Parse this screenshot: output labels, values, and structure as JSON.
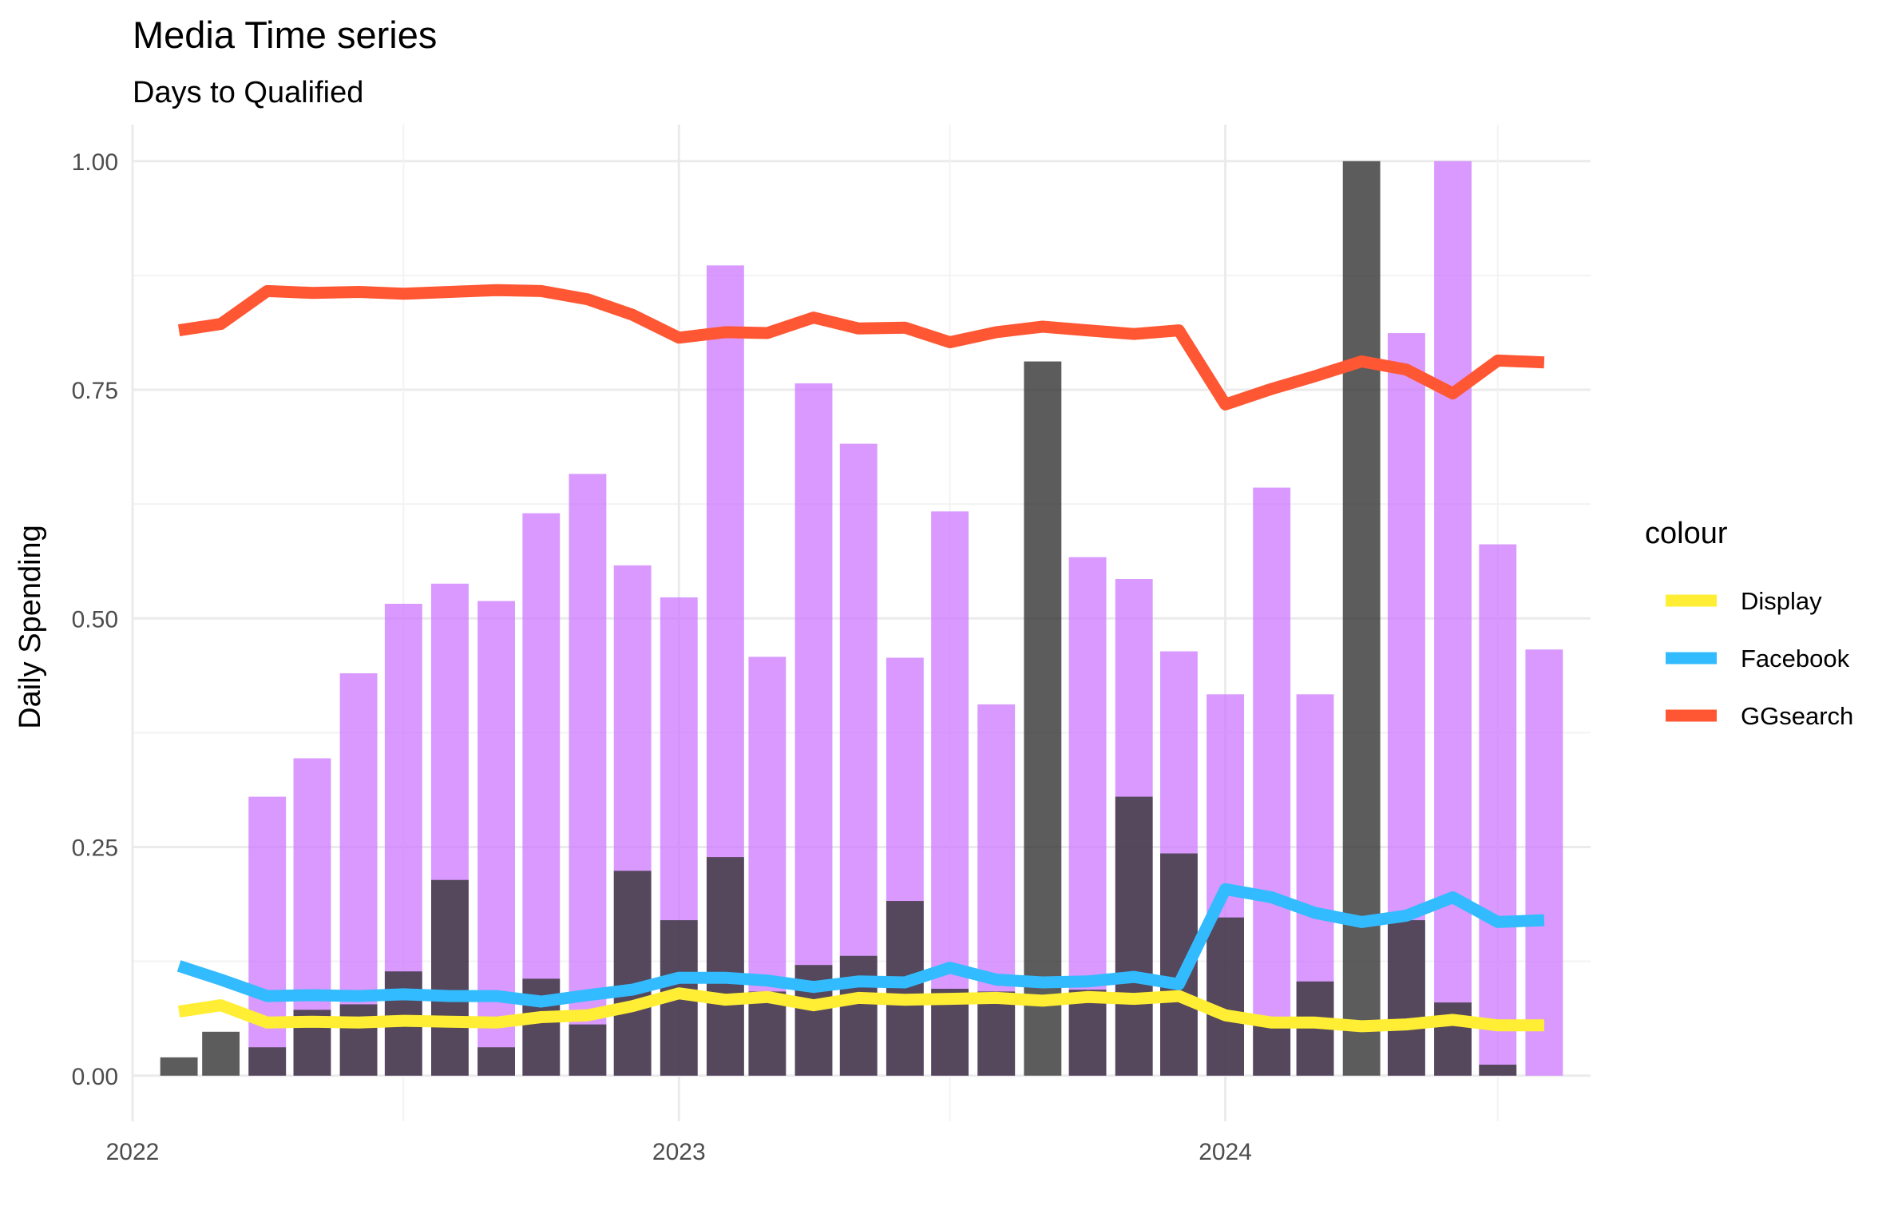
{
  "chart_data": {
    "type": "bar",
    "title": "Media Time series",
    "subtitle": "Days to Qualified",
    "xlabel": "",
    "ylabel": "Daily Spending",
    "ylim": [
      -0.05,
      1.04
    ],
    "yticks": [
      0.0,
      0.25,
      0.5,
      0.75,
      1.0
    ],
    "ytick_labels": [
      "0.00",
      "0.25",
      "0.50",
      "0.75",
      "1.00"
    ],
    "xticks": [
      "2022",
      "2023",
      "2024"
    ],
    "x_start": "2022-01-01",
    "x_end": "2024-09-01",
    "grid": true,
    "legend_title": "colour",
    "legend_position": "right",
    "dates": [
      "2022-02",
      "2022-03",
      "2022-04",
      "2022-05",
      "2022-06",
      "2022-07",
      "2022-08",
      "2022-09",
      "2022-10",
      "2022-11",
      "2022-12",
      "2023-01",
      "2023-02",
      "2023-03",
      "2023-04",
      "2023-05",
      "2023-06",
      "2023-07",
      "2023-08",
      "2023-09",
      "2023-10",
      "2023-11",
      "2023-12",
      "2024-01",
      "2024-02",
      "2024-03",
      "2024-04",
      "2024-05",
      "2024-06",
      "2024-07",
      "2024-08"
    ],
    "bar_series": [
      {
        "color": "#cc77ff",
        "opacity": 0.75,
        "values": [
          0.0,
          0.0,
          0.305,
          0.347,
          0.44,
          0.516,
          0.538,
          0.519,
          0.615,
          0.658,
          0.558,
          0.523,
          0.886,
          0.458,
          0.757,
          0.691,
          0.457,
          0.617,
          0.406,
          0.0,
          0.567,
          0.543,
          0.464,
          0.417,
          0.643,
          0.417,
          0.0,
          0.812,
          1.0,
          0.581,
          0.466
        ]
      },
      {
        "color": "#333333",
        "opacity": 0.8,
        "values": [
          0.02,
          0.048,
          0.031,
          0.072,
          0.078,
          0.114,
          0.214,
          0.031,
          0.106,
          0.056,
          0.224,
          0.17,
          0.239,
          0.092,
          0.121,
          0.131,
          0.191,
          0.095,
          0.092,
          0.781,
          0.094,
          0.305,
          0.243,
          0.173,
          0.058,
          0.103,
          1.0,
          0.17,
          0.08,
          0.012,
          0.0
        ]
      }
    ],
    "series": [
      {
        "name": "Display",
        "color": "#ffee33",
        "values": [
          0.07,
          0.077,
          0.058,
          0.059,
          0.058,
          0.06,
          0.059,
          0.058,
          0.064,
          0.066,
          0.076,
          0.09,
          0.083,
          0.086,
          0.077,
          0.085,
          0.083,
          0.084,
          0.085,
          0.082,
          0.086,
          0.084,
          0.087,
          0.066,
          0.058,
          0.058,
          0.054,
          0.056,
          0.061,
          0.055,
          0.055
        ]
      },
      {
        "name": "Facebook",
        "color": "#33bbff",
        "values": [
          0.12,
          0.105,
          0.087,
          0.088,
          0.087,
          0.089,
          0.087,
          0.087,
          0.081,
          0.088,
          0.094,
          0.107,
          0.107,
          0.104,
          0.097,
          0.103,
          0.102,
          0.118,
          0.105,
          0.102,
          0.103,
          0.108,
          0.1,
          0.204,
          0.195,
          0.178,
          0.168,
          0.175,
          0.195,
          0.168,
          0.17
        ]
      },
      {
        "name": "GGsearch",
        "color": "#ff5733",
        "values": [
          0.815,
          0.822,
          0.858,
          0.856,
          0.857,
          0.855,
          0.857,
          0.859,
          0.858,
          0.849,
          0.832,
          0.807,
          0.813,
          0.812,
          0.829,
          0.817,
          0.818,
          0.802,
          0.813,
          0.819,
          0.815,
          0.811,
          0.815,
          0.734,
          0.751,
          0.765,
          0.781,
          0.772,
          0.746,
          0.782,
          0.78
        ]
      }
    ]
  }
}
